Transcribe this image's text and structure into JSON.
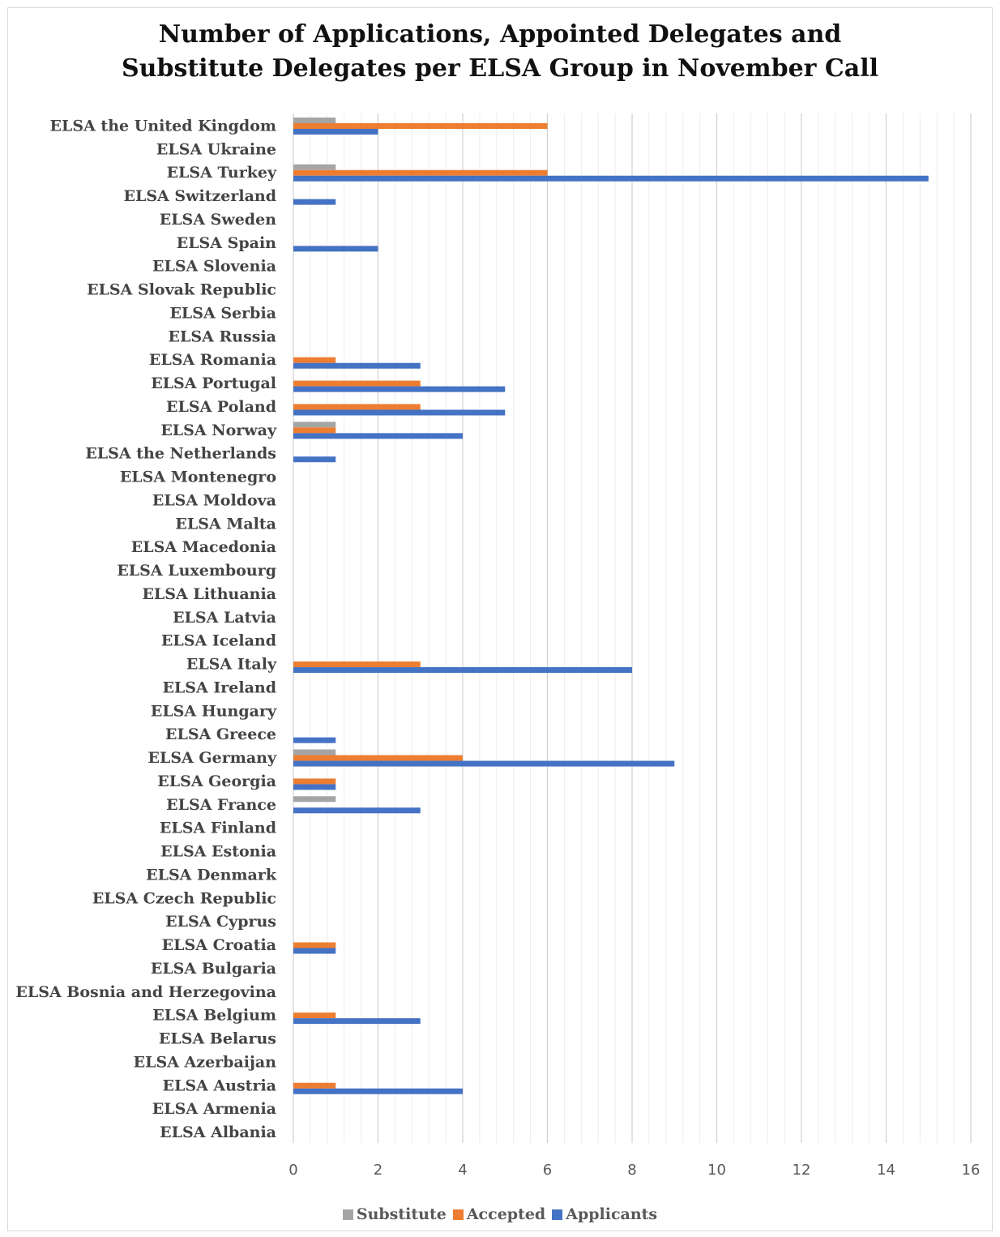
{
  "chart_data": {
    "type": "bar",
    "orientation": "horizontal",
    "title_lines": [
      "Number of  Applications, Appointed Delegates and",
      "Substitute Delegates per ELSA Group in November Call"
    ],
    "xlabel": "",
    "ylabel": "",
    "xlim": [
      0,
      16
    ],
    "xticks": [
      0,
      2,
      4,
      6,
      8,
      10,
      12,
      14,
      16
    ],
    "grid": "vertical",
    "minor_grid_step": 0.4,
    "legend_position": "bottom",
    "categories": [
      "ELSA the United Kingdom",
      "ELSA Ukraine",
      "ELSA Turkey",
      "ELSA Switzerland",
      "ELSA Sweden",
      "ELSA Spain",
      "ELSA Slovenia",
      "ELSA Slovak Republic",
      "ELSA Serbia",
      "ELSA Russia",
      "ELSA Romania",
      "ELSA Portugal",
      "ELSA Poland",
      "ELSA Norway",
      "ELSA the Netherlands",
      "ELSA Montenegro",
      "ELSA Moldova",
      "ELSA Malta",
      "ELSA Macedonia",
      "ELSA Luxembourg",
      "ELSA Lithuania",
      "ELSA Latvia",
      "ELSA Iceland",
      "ELSA Italy",
      "ELSA Ireland",
      "ELSA Hungary",
      "ELSA Greece",
      "ELSA Germany",
      "ELSA Georgia",
      "ELSA France",
      "ELSA Finland",
      "ELSA Estonia",
      "ELSA Denmark",
      "ELSA Czech Republic",
      "ELSA Cyprus",
      "ELSA Croatia",
      "ELSA Bulgaria",
      "ELSA Bosnia and Herzegovina",
      "ELSA Belgium",
      "ELSA Belarus",
      "ELSA Azerbaijan",
      "ELSA Austria",
      "ELSA Armenia",
      "ELSA Albania"
    ],
    "series": [
      {
        "name": "Substitute",
        "color": "#a5a5a5",
        "values": [
          1,
          0,
          1,
          0,
          0,
          0,
          0,
          0,
          0,
          0,
          0,
          0,
          0,
          1,
          0,
          0,
          0,
          0,
          0,
          0,
          0,
          0,
          0,
          0,
          0,
          0,
          0,
          1,
          0,
          1,
          0,
          0,
          0,
          0,
          0,
          0,
          0,
          0,
          0,
          0,
          0,
          0,
          0,
          0
        ]
      },
      {
        "name": "Accepted",
        "color": "#ed7d31",
        "values": [
          6,
          0,
          6,
          0,
          0,
          0,
          0,
          0,
          0,
          0,
          1,
          3,
          3,
          1,
          0,
          0,
          0,
          0,
          0,
          0,
          0,
          0,
          0,
          3,
          0,
          0,
          0,
          4,
          1,
          0,
          0,
          0,
          0,
          0,
          0,
          1,
          0,
          0,
          1,
          0,
          0,
          1,
          0,
          0
        ]
      },
      {
        "name": "Applicants",
        "color": "#4472c4",
        "values": [
          2,
          0,
          15,
          1,
          0,
          2,
          0,
          0,
          0,
          0,
          3,
          5,
          5,
          4,
          1,
          0,
          0,
          0,
          0,
          0,
          0,
          0,
          0,
          8,
          0,
          0,
          1,
          9,
          1,
          3,
          0,
          0,
          0,
          0,
          0,
          1,
          0,
          0,
          3,
          0,
          0,
          4,
          0,
          0
        ]
      }
    ]
  }
}
